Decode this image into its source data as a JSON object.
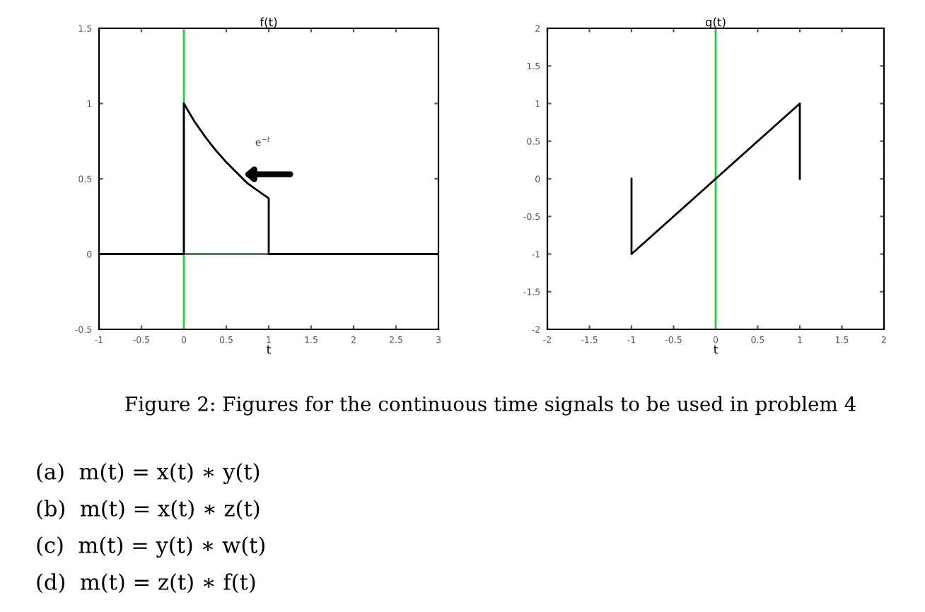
{
  "chart_data": [
    {
      "type": "line",
      "title": "f(t)",
      "xlabel": "t",
      "xlim": [
        -1,
        3
      ],
      "ylim": [
        -0.5,
        1.5
      ],
      "xticks": [
        -1,
        -0.5,
        0,
        0.5,
        1,
        1.5,
        2,
        2.5,
        3
      ],
      "yticks": [
        -0.5,
        0,
        0.5,
        1,
        1.5
      ],
      "grid": false,
      "legend": false,
      "marker": "none",
      "line_style": "solid",
      "series": [
        {
          "color": "#000000",
          "x": [
            -1,
            0,
            0,
            0.125,
            0.25,
            0.375,
            0.5,
            0.625,
            0.75,
            0.875,
            1,
            1,
            3
          ],
          "values": [
            0,
            0,
            1,
            0.88,
            0.78,
            0.69,
            0.61,
            0.54,
            0.47,
            0.42,
            0.37,
            0,
            0
          ]
        }
      ],
      "ref_lines": [
        {
          "axis": "x",
          "value": 0,
          "color": "#2ecc40"
        },
        {
          "axis": "y",
          "value": 0,
          "color": "#5a7a5a"
        }
      ],
      "annotations": [
        "e$^{−t}$"
      ]
    },
    {
      "type": "line",
      "title": "g(t)",
      "xlabel": "t",
      "xlim": [
        -2,
        2
      ],
      "ylim": [
        -2,
        2
      ],
      "xticks": [
        -2,
        -1.5,
        -1,
        -0.5,
        0,
        0.5,
        1,
        1.5,
        2
      ],
      "yticks": [
        -2,
        -1.5,
        -1,
        -0.5,
        0,
        0.5,
        1,
        1.5,
        2
      ],
      "grid": false,
      "legend": false,
      "marker": "none",
      "line_style": "solid",
      "series": [
        {
          "color": "#000000",
          "x": [
            -1,
            -1,
            1,
            1
          ],
          "values": [
            0,
            -1,
            1,
            0
          ]
        }
      ],
      "ref_lines": [
        {
          "axis": "x",
          "value": 0,
          "color": "#2ecc40"
        }
      ]
    },
    {
      "type": "other",
      "annotations": [
        "Figure 2: Figures for the continuous time signals to be used in problem 4",
        "(a)  m(t) = x(t) ∗ y(t)",
        "(b)  m(t) = x(t) ∗ z(t)",
        "(c)  m(t) = y(t) ∗ w(t)",
        "(d)  m(t) = z(t) ∗ f(t)"
      ]
    }
  ]
}
